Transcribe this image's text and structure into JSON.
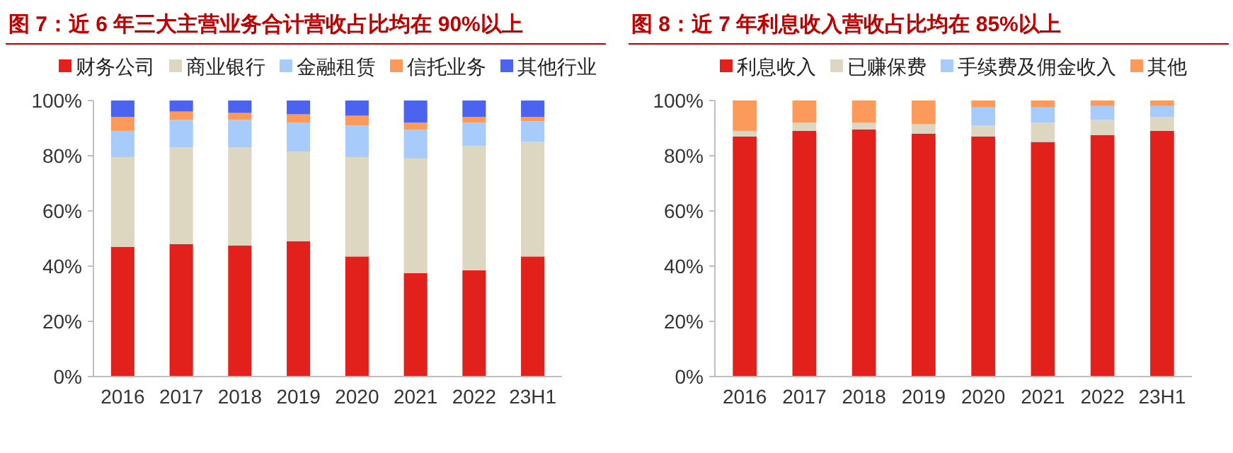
{
  "chart_data": [
    {
      "type": "bar",
      "stacked": true,
      "title": "图 7：近 6 年三大主营业务合计营收占比均在 90%以上",
      "categories": [
        "2016",
        "2017",
        "2018",
        "2019",
        "2020",
        "2021",
        "2022",
        "23H1"
      ],
      "series": [
        {
          "name": "财务公司",
          "color": "#e3211c",
          "values": [
            47,
            48,
            47.5,
            49,
            43.5,
            37.5,
            38.5,
            43.5
          ]
        },
        {
          "name": "商业银行",
          "color": "#ddd6c1",
          "values": [
            32.5,
            35,
            35.5,
            32.5,
            36,
            41.5,
            45,
            41.5
          ]
        },
        {
          "name": "金融租赁",
          "color": "#a7cbfb",
          "values": [
            9.5,
            10,
            10,
            10.5,
            11.5,
            10.5,
            8.5,
            7.5
          ]
        },
        {
          "name": "信托业务",
          "color": "#fb9a5a",
          "values": [
            5,
            3,
            2.5,
            3,
            3.5,
            2.5,
            2,
            1.5
          ]
        },
        {
          "name": "其他行业",
          "color": "#4c63f0",
          "values": [
            6,
            4,
            4.5,
            5,
            5.5,
            8,
            6,
            6
          ]
        }
      ],
      "ylim": [
        0,
        100
      ],
      "yticks": [
        {
          "value": 0,
          "label": "0%"
        },
        {
          "value": 20,
          "label": "20%"
        },
        {
          "value": 40,
          "label": "40%"
        },
        {
          "value": 60,
          "label": "60%"
        },
        {
          "value": 80,
          "label": "80%"
        },
        {
          "value": 100,
          "label": "100%"
        }
      ],
      "legend": "top",
      "grid": false
    },
    {
      "type": "bar",
      "stacked": true,
      "title": "图 8：近 7 年利息收入营收占比均在 85%以上",
      "categories": [
        "2016",
        "2017",
        "2018",
        "2019",
        "2020",
        "2021",
        "2022",
        "23H1"
      ],
      "series": [
        {
          "name": "利息收入",
          "color": "#e3211c",
          "values": [
            87,
            89,
            89.5,
            88,
            87,
            85,
            87.5,
            89
          ]
        },
        {
          "name": "已赚保费",
          "color": "#ddd6c1",
          "values": [
            2,
            3,
            2.5,
            3.5,
            4,
            7,
            5.5,
            5
          ]
        },
        {
          "name": "手续费及佣金收入",
          "color": "#a7cbfb",
          "values": [
            0,
            0,
            0,
            0,
            6.5,
            5.5,
            5,
            4
          ]
        },
        {
          "name": "其他",
          "color": "#fb9a5a",
          "values": [
            11,
            8,
            8,
            8.5,
            2.5,
            2.5,
            2,
            2
          ]
        }
      ],
      "ylim": [
        0,
        100
      ],
      "yticks": [
        {
          "value": 0,
          "label": "0%"
        },
        {
          "value": 20,
          "label": "20%"
        },
        {
          "value": 40,
          "label": "40%"
        },
        {
          "value": 60,
          "label": "60%"
        },
        {
          "value": 80,
          "label": "80%"
        },
        {
          "value": 100,
          "label": "100%"
        }
      ],
      "legend": "top",
      "grid": false
    }
  ]
}
